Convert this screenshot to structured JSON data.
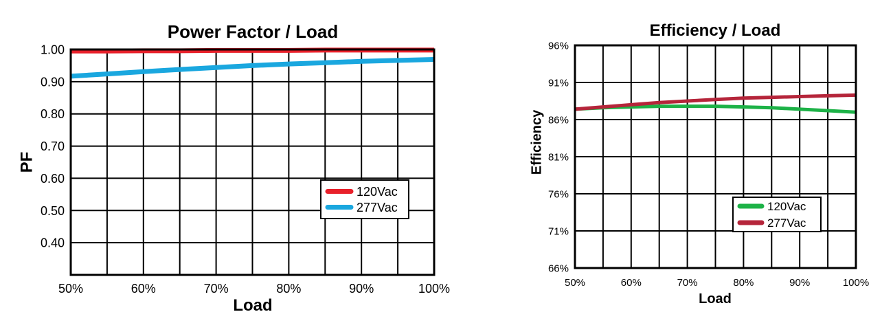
{
  "chart_data": [
    {
      "type": "line",
      "title": "Power Factor / Load",
      "xlabel": "Load",
      "ylabel": "PF",
      "x": [
        50,
        55,
        60,
        65,
        70,
        75,
        80,
        85,
        90,
        95,
        100
      ],
      "x_tick_labels": [
        "50%",
        "60%",
        "70%",
        "80%",
        "90%",
        "100%"
      ],
      "y_tick_labels": [
        "1.00",
        "0.90",
        "0.80",
        "0.70",
        "0.60",
        "0.50",
        "0.40"
      ],
      "ylim": [
        0.3,
        1.0
      ],
      "xlim": [
        50,
        100
      ],
      "grid": true,
      "legend": "center-right",
      "series": [
        {
          "name": "120Vac",
          "color": "#e8202a",
          "values": [
            0.995,
            0.995,
            0.996,
            0.996,
            0.997,
            0.997,
            0.997,
            0.998,
            0.998,
            0.998,
            0.998
          ]
        },
        {
          "name": "277Vac",
          "color": "#1aa7df",
          "values": [
            0.917,
            0.924,
            0.931,
            0.938,
            0.944,
            0.95,
            0.955,
            0.959,
            0.963,
            0.966,
            0.969
          ]
        }
      ]
    },
    {
      "type": "line",
      "title": "Efficiency / Load",
      "xlabel": "Load",
      "ylabel": "Efficiency",
      "x": [
        50,
        55,
        60,
        65,
        70,
        75,
        80,
        85,
        90,
        95,
        100
      ],
      "x_tick_labels": [
        "50%",
        "60%",
        "70%",
        "80%",
        "90%",
        "100%"
      ],
      "y_tick_labels": [
        "96%",
        "91%",
        "86%",
        "81%",
        "76%",
        "71%",
        "66%"
      ],
      "ylim": [
        66,
        96
      ],
      "xlim": [
        50,
        100
      ],
      "grid": true,
      "legend": "bottom-right",
      "series": [
        {
          "name": "120Vac",
          "color": "#1db247",
          "values": [
            87.4,
            87.6,
            87.7,
            87.8,
            87.8,
            87.8,
            87.7,
            87.6,
            87.4,
            87.2,
            87.0
          ]
        },
        {
          "name": "277Vac",
          "color": "#b5253a",
          "values": [
            87.4,
            87.7,
            88.0,
            88.3,
            88.5,
            88.7,
            88.9,
            89.0,
            89.1,
            89.2,
            89.3
          ]
        }
      ]
    }
  ]
}
